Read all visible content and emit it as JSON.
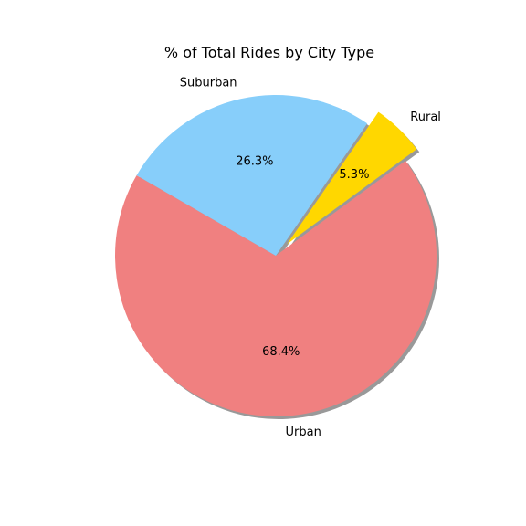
{
  "chart_data": {
    "type": "pie",
    "title": "% of Total Rides by City Type",
    "slices": [
      {
        "label": "Urban",
        "value": 68.4,
        "pct_label": "68.4%",
        "color": "#f08080",
        "explode": false
      },
      {
        "label": "Rural",
        "value": 5.3,
        "pct_label": "5.3%",
        "color": "#ffd700",
        "explode": true
      },
      {
        "label": "Suburban",
        "value": 26.3,
        "pct_label": "26.3%",
        "color": "#87cefa",
        "explode": false
      }
    ],
    "start_angle_deg": 150,
    "direction": "counterclockwise",
    "shadow": true,
    "edge_color": "#808080"
  }
}
